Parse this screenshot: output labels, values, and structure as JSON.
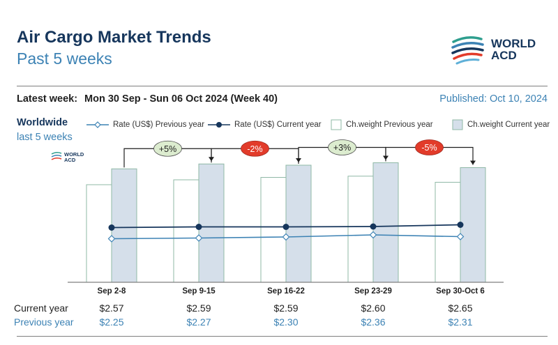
{
  "header": {
    "title": "Air Cargo Market Trends",
    "subtitle": "Past 5 weeks",
    "logo_line1": "WORLD",
    "logo_line2": "ACD"
  },
  "info": {
    "latest_label": "Latest week:",
    "latest_value": "Mon 30 Sep - Sun 06 Oct 2024 (Week 40)",
    "published": "Published: Oct 10, 2024"
  },
  "section": {
    "region": "Worldwide",
    "period": "last 5 weeks"
  },
  "legend": {
    "rate_prev": "Rate (US$) Previous year",
    "rate_cur": "Rate (US$) Current year",
    "cw_prev": "Ch.weight Previous year",
    "cw_cur": "Ch.weight Current year"
  },
  "table": {
    "current_label": "Current year",
    "previous_label": "Previous year",
    "current_values": [
      "$2.57",
      "$2.59",
      "$2.59",
      "$2.60",
      "$2.65"
    ],
    "previous_values": [
      "$2.25",
      "$2.27",
      "$2.30",
      "$2.36",
      "$2.31"
    ]
  },
  "colors": {
    "navy": "#16365c",
    "blue": "#3c82b4",
    "bar_prev_fill": "#ffffff",
    "bar_cur_fill": "#d5dfea",
    "bar_stroke": "#8fb8a6",
    "pos_change": "#dceccf",
    "neg_change": "#e23b2a"
  },
  "chart_data": {
    "type": "bar+line",
    "categories": [
      "Sep 2-8",
      "Sep 9-15",
      "Sep 16-22",
      "Sep 23-29",
      "Sep 30-Oct 6"
    ],
    "weight_index_prev": [
      0.8,
      0.84,
      0.86,
      0.87,
      0.82
    ],
    "weight_index_cur": [
      0.93,
      0.97,
      0.96,
      0.98,
      0.94
    ],
    "rate_prev": [
      2.25,
      2.27,
      2.3,
      2.36,
      2.31
    ],
    "rate_cur": [
      2.57,
      2.59,
      2.59,
      2.6,
      2.65
    ],
    "changes": [
      "+5%",
      "-2%",
      "+3%",
      "-5%"
    ],
    "change_sign": [
      1,
      -1,
      1,
      -1
    ]
  }
}
